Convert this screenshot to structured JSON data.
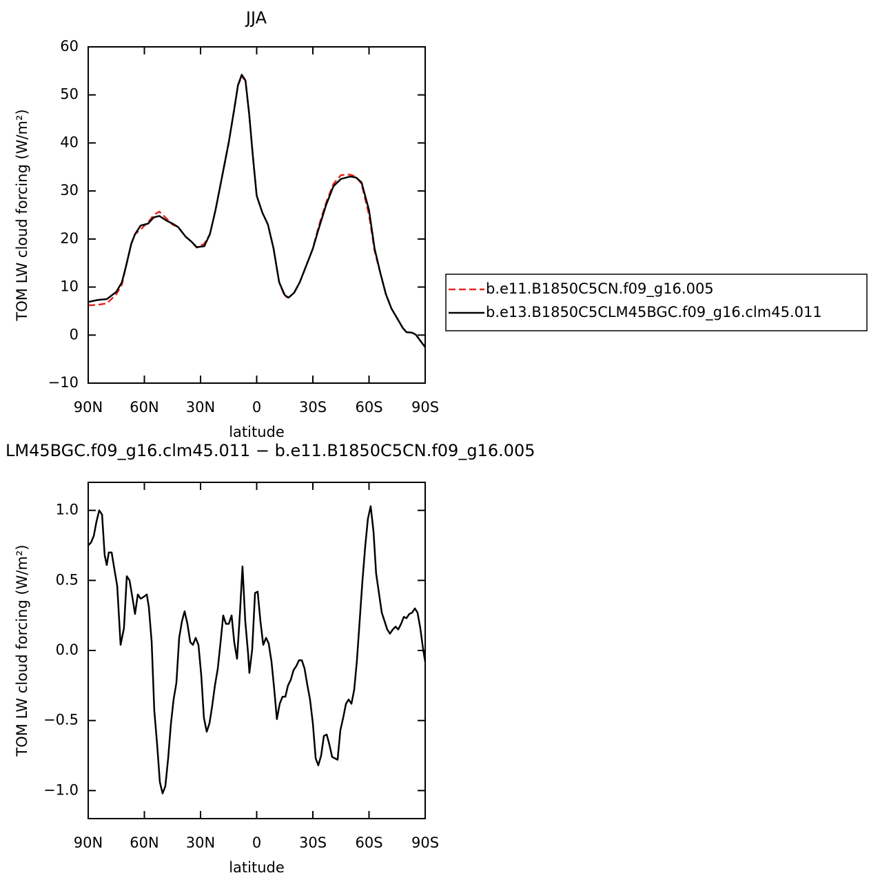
{
  "chart_data": [
    {
      "type": "line",
      "title": "JJA",
      "xlabel": "latitude",
      "ylabel": "TOM LW cloud forcing (W/m²)",
      "x": [
        90,
        85,
        80,
        75,
        72,
        70,
        67,
        65,
        62,
        58,
        55,
        52,
        48,
        45,
        42,
        38,
        35,
        32,
        28,
        25,
        22,
        19,
        15,
        12,
        10,
        8,
        6,
        4,
        2,
        0,
        -3,
        -6,
        -9,
        -12,
        -15,
        -17,
        -20,
        -23,
        -27,
        -30,
        -33,
        -37,
        -41,
        -45,
        -50,
        -53,
        -56,
        -60,
        -63,
        -66,
        -69,
        -72,
        -75,
        -78,
        -80,
        -83,
        -85,
        -88,
        -90
      ],
      "xlim": [
        90,
        -90
      ],
      "xticks": [
        {
          "value": 90,
          "label": "90N"
        },
        {
          "value": 60,
          "label": "60N"
        },
        {
          "value": 30,
          "label": "30N"
        },
        0,
        {
          "value": -30,
          "label": "30S"
        },
        {
          "value": -60,
          "label": "60S"
        },
        {
          "value": -90,
          "label": "90S"
        }
      ],
      "ylim": [
        -10,
        60
      ],
      "yticks": [
        {
          "value": -10,
          "label": "−10"
        },
        0,
        10,
        20,
        30,
        40,
        50,
        60
      ],
      "legend": "outside-right",
      "series": [
        {
          "name": "b.e11.B1850C5CN.f09_g16.005",
          "color": "#e8231f",
          "linestyle": "dashed",
          "values": [
            6.2,
            6.3,
            6.6,
            8.5,
            10.5,
            14,
            19,
            21,
            22,
            23.5,
            25,
            25.7,
            24.2,
            23,
            22.5,
            20.5,
            19.5,
            18.2,
            19,
            21,
            26,
            32,
            40,
            47,
            52,
            53.8,
            53,
            46,
            37,
            29,
            25.5,
            23,
            18,
            11,
            8,
            7.8,
            8.8,
            11,
            15,
            18,
            22.5,
            27.5,
            31.5,
            33.3,
            33.4,
            33,
            31.5,
            25,
            17.5,
            13,
            8.5,
            5.5,
            3.5,
            1.5,
            0.6,
            0.5,
            0.1,
            -1.5,
            -2.5
          ]
        },
        {
          "name": "b.e13.B1850C5CLM45BGC.f09_g16.clm45.011",
          "color": "#000000",
          "linestyle": "solid",
          "values": [
            6.9,
            7.3,
            7.5,
            9,
            11,
            14,
            19,
            21,
            22.8,
            23.2,
            24.5,
            24.8,
            23.8,
            23.2,
            22.5,
            20.5,
            19.5,
            18.3,
            18.5,
            21,
            26,
            32,
            40,
            47,
            52,
            54.2,
            53,
            46,
            37,
            29,
            25.5,
            23,
            18,
            11,
            8.3,
            7.8,
            8.8,
            11,
            15,
            18,
            22,
            27,
            31,
            32.5,
            33,
            32.8,
            31.8,
            26,
            18,
            13,
            8.5,
            5.5,
            3.5,
            1.5,
            0.6,
            0.5,
            0.1,
            -1.5,
            -2.5
          ]
        }
      ]
    },
    {
      "type": "line",
      "title": "LM45BGC.f09_g16.clm45.011 − b.e11.B1850C5CN.f09_g16.005",
      "xlabel": "latitude",
      "ylabel": "TOM LW cloud forcing (W/m²)",
      "x": [
        90,
        88.5,
        87,
        85.6,
        84.1,
        82.6,
        81.2,
        80.1,
        79,
        77.5,
        76,
        74.5,
        72.7,
        70.9,
        69.4,
        67.9,
        66.4,
        65,
        63.5,
        62,
        60.6,
        58.7,
        57.6,
        56.1,
        54.7,
        53.2,
        51.7,
        50.3,
        48.8,
        47.3,
        45.8,
        44.4,
        42.9,
        41.4,
        39.9,
        38.5,
        37,
        35.5,
        34.1,
        32.6,
        31.1,
        29.6,
        28.2,
        26.7,
        25.2,
        23.8,
        22.3,
        20.8,
        19.3,
        17.9,
        16.4,
        14.9,
        13.4,
        12,
        10.5,
        9,
        7.6,
        6.1,
        4.6,
        3.9,
        2.4,
        0.9,
        -0.5,
        -2,
        -3.5,
        -5,
        -6.4,
        -7.9,
        -9.4,
        -10.8,
        -12.3,
        -13.8,
        -15.3,
        -16.7,
        -18.2,
        -19.7,
        -21.2,
        -22.6,
        -24.1,
        -25.6,
        -27.1,
        -28.5,
        -30,
        -31.5,
        -32.9,
        -34.4,
        -35.9,
        -37.4,
        -38.8,
        -40.3,
        -41.8,
        -43.2,
        -44.7,
        -46.2,
        -47.7,
        -49.1,
        -50.6,
        -52.1,
        -53.5,
        -55,
        -56.5,
        -58,
        -59.4,
        -60.9,
        -62.4,
        -63.8,
        -65.3,
        -66.8,
        -68.3,
        -69.7,
        -71.2,
        -72.7,
        -74.2,
        -75.6,
        -77.1,
        -78.6,
        -80,
        -81.5,
        -83,
        -84.5,
        -85.9,
        -87.4,
        -88.9,
        -90
      ],
      "xlim": [
        90,
        -90
      ],
      "xticks": [
        {
          "value": 90,
          "label": "90N"
        },
        {
          "value": 60,
          "label": "60N"
        },
        {
          "value": 30,
          "label": "30N"
        },
        0,
        {
          "value": -30,
          "label": "30S"
        },
        {
          "value": -60,
          "label": "60S"
        },
        {
          "value": -90,
          "label": "90S"
        }
      ],
      "ylim": [
        -1.2,
        1.2
      ],
      "yticks": [
        {
          "value": -1,
          "label": "−1.0"
        },
        {
          "value": -0.5,
          "label": "−0.5"
        },
        {
          "value": 0,
          "label": "0.0"
        },
        0.5,
        {
          "value": 1,
          "label": "1.0"
        }
      ],
      "series": [
        {
          "color": "#000000",
          "linestyle": "solid",
          "values": [
            0.75,
            0.77,
            0.82,
            0.92,
            1.0,
            0.97,
            0.68,
            0.61,
            0.7,
            0.7,
            0.58,
            0.46,
            0.04,
            0.16,
            0.53,
            0.5,
            0.38,
            0.26,
            0.4,
            0.37,
            0.38,
            0.4,
            0.31,
            0.06,
            -0.43,
            -0.67,
            -0.94,
            -1.02,
            -0.97,
            -0.77,
            -0.52,
            -0.35,
            -0.23,
            0.09,
            0.21,
            0.28,
            0.19,
            0.06,
            0.04,
            0.09,
            0.04,
            -0.18,
            -0.48,
            -0.58,
            -0.52,
            -0.4,
            -0.25,
            -0.13,
            0.06,
            0.25,
            0.19,
            0.19,
            0.25,
            0.06,
            -0.06,
            0.26,
            0.6,
            0.21,
            -0.02,
            -0.16,
            0.01,
            0.41,
            0.42,
            0.21,
            0.04,
            0.09,
            0.05,
            -0.08,
            -0.28,
            -0.49,
            -0.38,
            -0.33,
            -0.33,
            -0.25,
            -0.21,
            -0.14,
            -0.11,
            -0.07,
            -0.07,
            -0.13,
            -0.25,
            -0.35,
            -0.52,
            -0.77,
            -0.82,
            -0.75,
            -0.61,
            -0.6,
            -0.67,
            -0.76,
            -0.77,
            -0.78,
            -0.57,
            -0.48,
            -0.38,
            -0.35,
            -0.38,
            -0.28,
            -0.08,
            0.21,
            0.5,
            0.75,
            0.94,
            1.03,
            0.85,
            0.55,
            0.41,
            0.27,
            0.21,
            0.15,
            0.12,
            0.15,
            0.17,
            0.15,
            0.19,
            0.24,
            0.23,
            0.26,
            0.27,
            0.3,
            0.27,
            0.16,
            0.01,
            -0.08
          ]
        }
      ]
    }
  ]
}
